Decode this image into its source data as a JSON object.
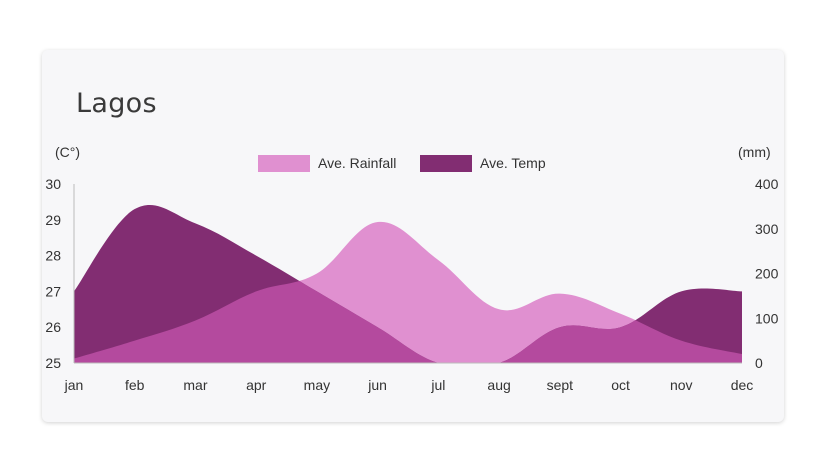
{
  "chart_data": {
    "type": "area",
    "title": "Lagos",
    "left_axis_unit": "(C°)",
    "right_axis_unit": "(mm)",
    "categories": [
      "jan",
      "feb",
      "mar",
      "apr",
      "may",
      "jun",
      "jul",
      "aug",
      "sept",
      "oct",
      "nov",
      "dec"
    ],
    "left_ylim": [
      25,
      30
    ],
    "left_ticks": [
      25,
      26,
      27,
      28,
      29,
      30
    ],
    "right_ylim": [
      0,
      400
    ],
    "right_ticks": [
      0,
      100,
      200,
      300,
      400
    ],
    "grid": false,
    "legend_position": "top-center",
    "overlap_color": "#b44a9e",
    "series": [
      {
        "name": "Ave. Rainfall",
        "axis": "right",
        "color": "#e090d0",
        "values": [
          10,
          50,
          95,
          160,
          200,
          315,
          230,
          120,
          155,
          110,
          50,
          20
        ]
      },
      {
        "name": "Ave. Temp",
        "axis": "left",
        "color": "#822d72",
        "values": [
          27.0,
          29.3,
          28.9,
          28.0,
          27.0,
          26.0,
          25.0,
          25.0,
          26.0,
          26.0,
          27.0,
          27.0
        ]
      }
    ]
  }
}
